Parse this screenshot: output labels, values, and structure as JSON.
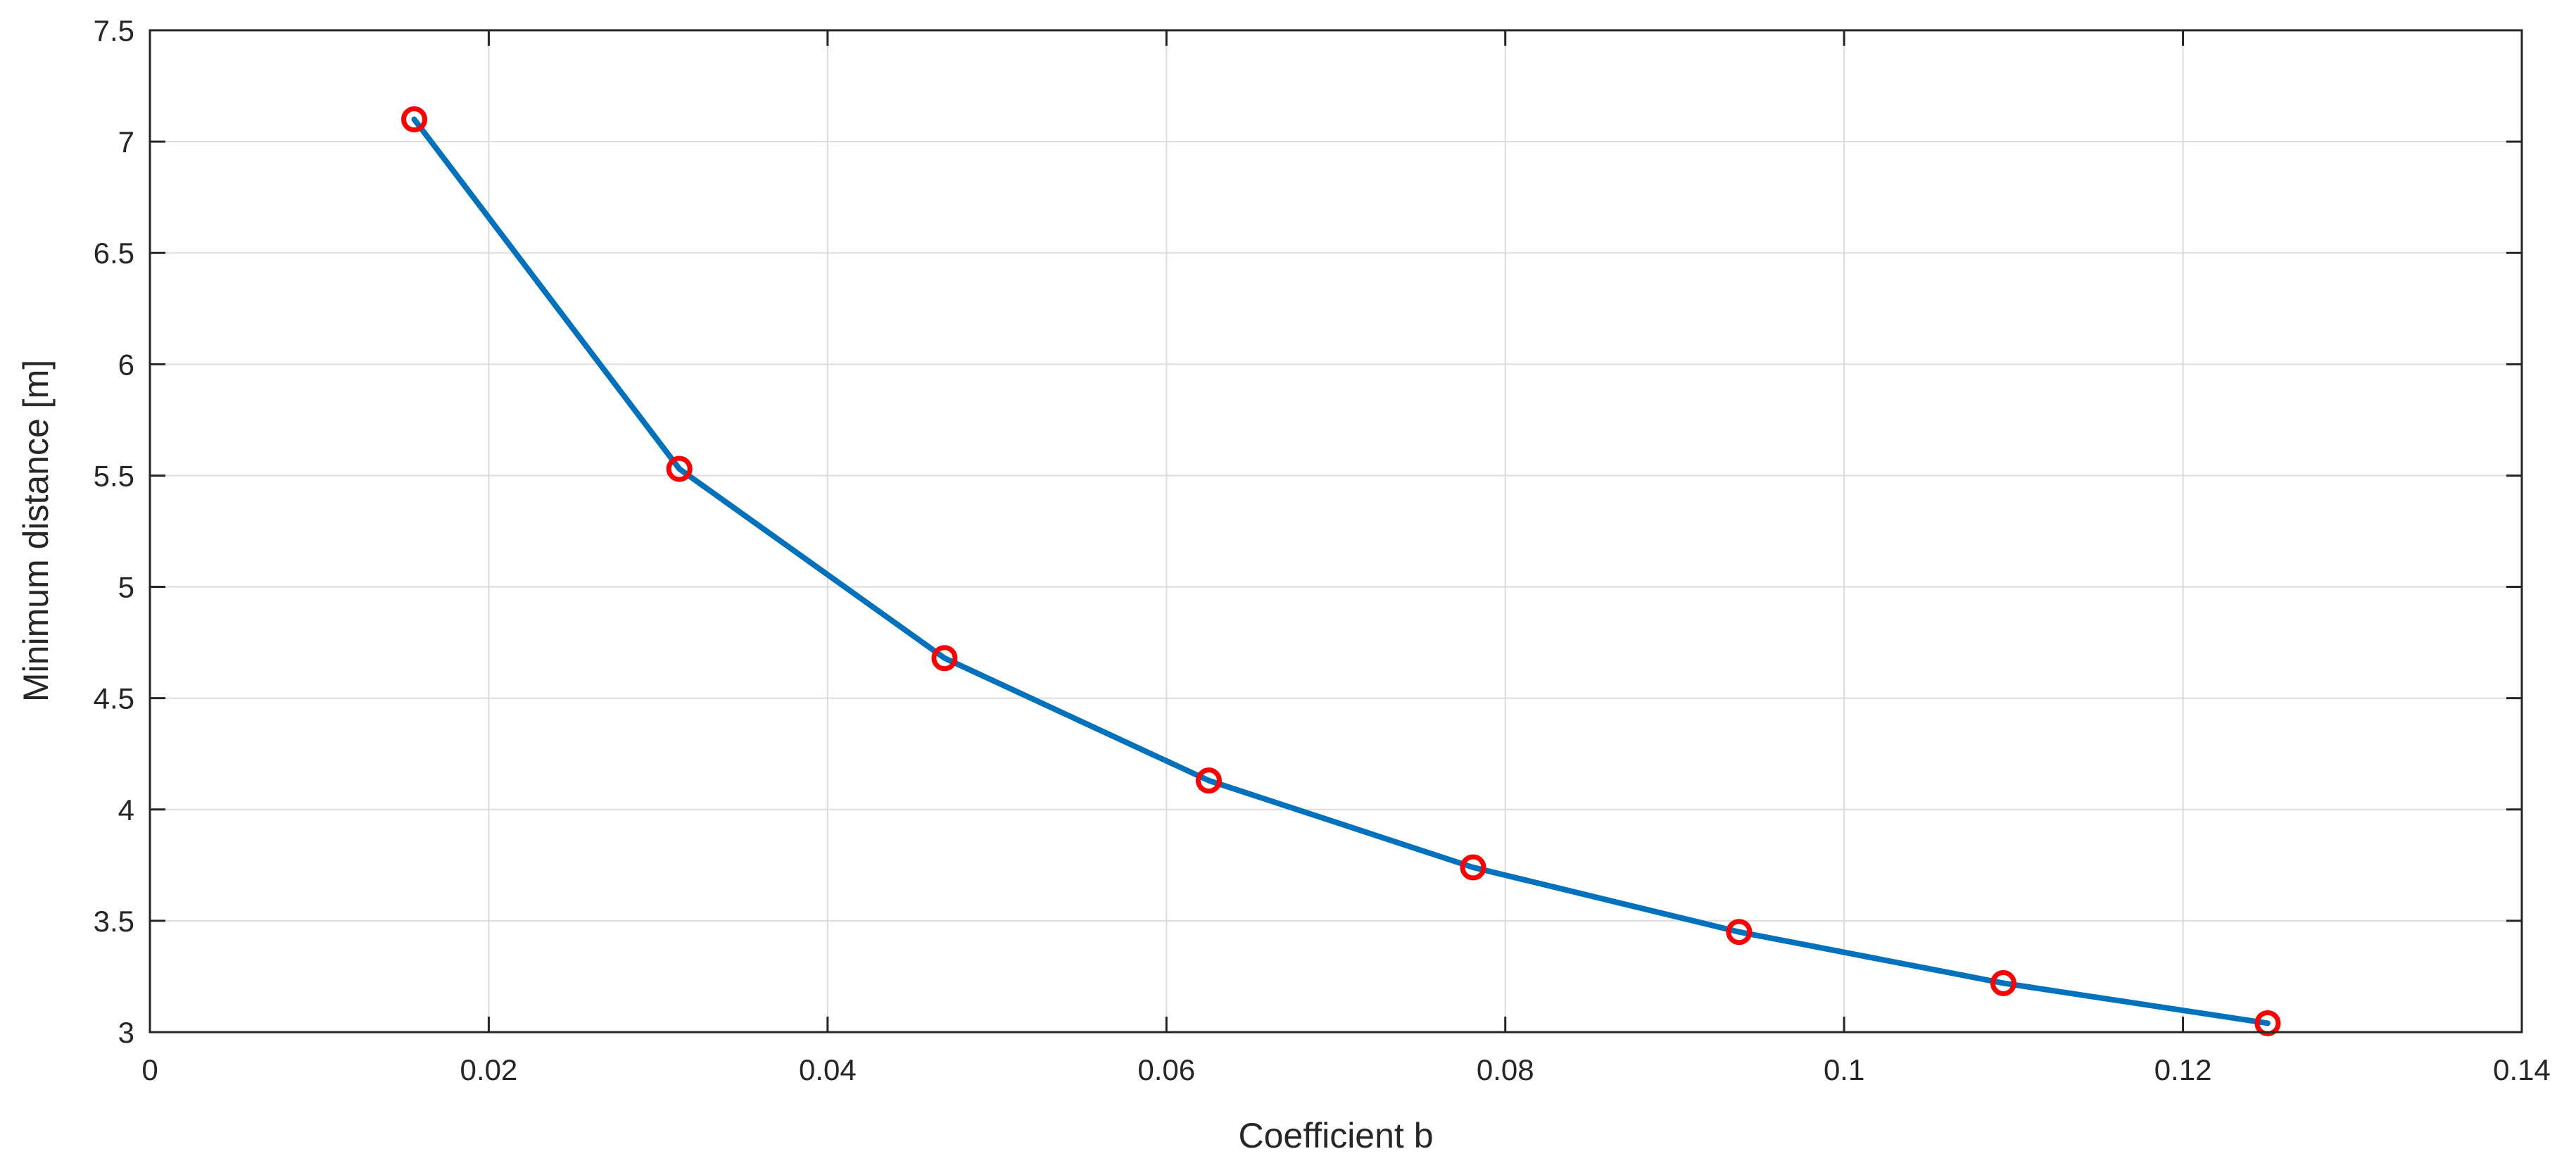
{
  "chart_data": {
    "type": "line",
    "title": "",
    "xlabel": "Coefficient b",
    "ylabel": "Minimum distance [m]",
    "xlim": [
      0,
      0.14
    ],
    "ylim": [
      3,
      7.5
    ],
    "grid": true,
    "x_ticks": [
      0,
      0.02,
      0.04,
      0.06,
      0.08,
      0.1,
      0.12,
      0.14
    ],
    "x_tick_labels": [
      "0",
      "0.02",
      "0.04",
      "0.06",
      "0.08",
      "0.1",
      "0.12",
      "0.14"
    ],
    "y_ticks": [
      3,
      3.5,
      4,
      4.5,
      5,
      5.5,
      6,
      6.5,
      7,
      7.5
    ],
    "y_tick_labels": [
      "3",
      "3.5",
      "4",
      "4.5",
      "5",
      "5.5",
      "6",
      "6.5",
      "7",
      "7.5"
    ],
    "series": [
      {
        "x": [
          0.0156,
          0.03125,
          0.0469,
          0.0625,
          0.0781,
          0.0938,
          0.1094,
          0.125
        ],
        "y": [
          7.1,
          5.53,
          4.68,
          4.13,
          3.74,
          3.45,
          3.22,
          3.04
        ],
        "line_color": "#0072BD",
        "marker_color": "#FF0000",
        "marker": "circle"
      }
    ]
  }
}
